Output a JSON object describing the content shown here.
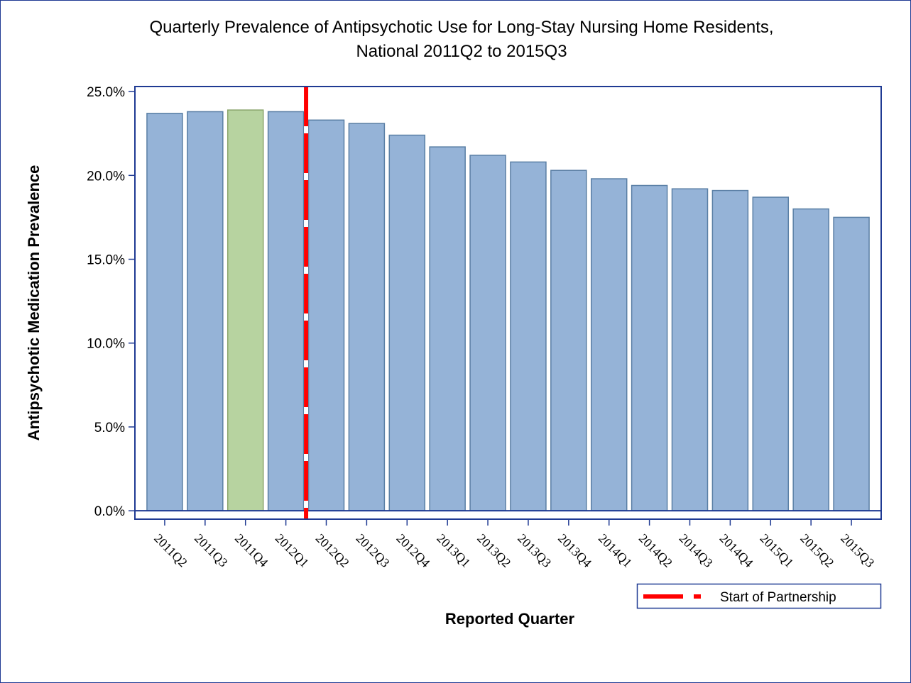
{
  "chart_data": {
    "type": "bar",
    "title": [
      "Quarterly Prevalence of Antipsychotic Use for Long-Stay Nursing Home Residents,",
      "National 2011Q2 to 2015Q3"
    ],
    "x_label": "Reported Quarter",
    "y_label": "Antipsychotic Medication Prevalence",
    "categories": [
      "2011Q2",
      "2011Q3",
      "2011Q4",
      "2012Q1",
      "2012Q2",
      "2012Q3",
      "2012Q4",
      "2013Q1",
      "2013Q2",
      "2013Q3",
      "2013Q4",
      "2014Q1",
      "2014Q2",
      "2014Q3",
      "2014Q4",
      "2015Q1",
      "2015Q2",
      "2015Q3"
    ],
    "values": [
      23.7,
      23.8,
      23.9,
      23.8,
      23.3,
      23.1,
      22.4,
      21.7,
      21.2,
      20.8,
      20.3,
      19.8,
      19.4,
      19.2,
      19.1,
      18.7,
      18.0,
      17.5
    ],
    "bar_colors": [
      "#95b3d7",
      "#95b3d7",
      "#b7d3a0",
      "#95b3d7",
      "#95b3d7",
      "#95b3d7",
      "#95b3d7",
      "#95b3d7",
      "#95b3d7",
      "#95b3d7",
      "#95b3d7",
      "#95b3d7",
      "#95b3d7",
      "#95b3d7",
      "#95b3d7",
      "#95b3d7",
      "#95b3d7",
      "#95b3d7"
    ],
    "ylim": [
      -0.5,
      25.3
    ],
    "yticks": [
      {
        "value": 0,
        "label": "0.0%"
      },
      {
        "value": 5,
        "label": "5.0%"
      },
      {
        "value": 10,
        "label": "10.0%"
      },
      {
        "value": 15,
        "label": "15.0%"
      },
      {
        "value": 20,
        "label": "20.0%"
      },
      {
        "value": 25,
        "label": "25.0%"
      }
    ],
    "reference_line": {
      "name": "Start of Partnership",
      "before_category": "2012Q2",
      "color": "#ff0000"
    }
  }
}
